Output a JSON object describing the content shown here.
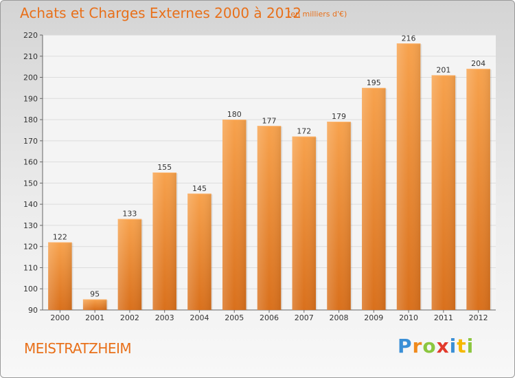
{
  "chart_data": {
    "type": "bar",
    "title": "Achats et Charges Externes 2000 à 2012",
    "subtitle": "(en milliers d'€)",
    "categories": [
      "2000",
      "2001",
      "2002",
      "2003",
      "2004",
      "2005",
      "2006",
      "2007",
      "2008",
      "2009",
      "2010",
      "2011",
      "2012"
    ],
    "values": [
      122,
      95,
      133,
      155,
      145,
      180,
      177,
      172,
      179,
      195,
      216,
      201,
      204
    ],
    "ylim": [
      90,
      220
    ],
    "yticks": [
      90,
      100,
      110,
      120,
      130,
      140,
      150,
      160,
      170,
      180,
      190,
      200,
      210,
      220
    ],
    "grid": true,
    "bar_color": "#f0922e"
  },
  "footer": {
    "city": "MEISTRATZHEIM",
    "brand_letters": [
      {
        "ch": "P",
        "color": "#3a8fd6"
      },
      {
        "ch": "r",
        "color": "#f08a1c"
      },
      {
        "ch": "o",
        "color": "#8cc63f"
      },
      {
        "ch": "x",
        "color": "#e23a2c"
      },
      {
        "ch": "i",
        "color": "#3a8fd6"
      },
      {
        "ch": "t",
        "color": "#f5b800"
      },
      {
        "ch": "i",
        "color": "#8cc63f"
      }
    ]
  }
}
